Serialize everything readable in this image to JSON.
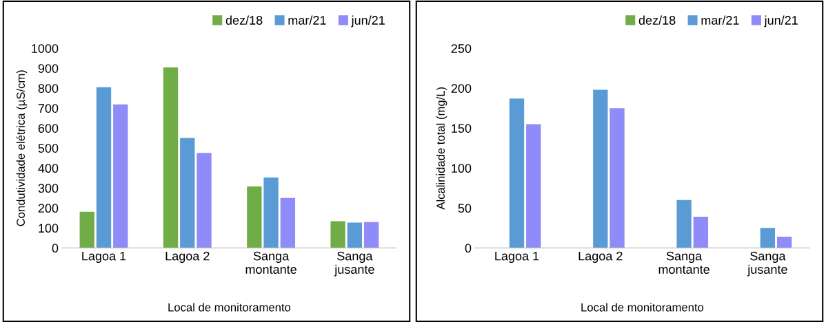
{
  "chart_data": [
    {
      "type": "bar",
      "xlabel": "Local de monitoramento",
      "ylabel": "Condutividade elétrica (µS/cm)",
      "categories": [
        "Lagoa 1",
        "Lagoa 2",
        "Sanga\nmontante",
        "Sanga\njusante"
      ],
      "series": [
        {
          "name": "dez/18",
          "color": "#70ad47",
          "values": [
            181,
            904,
            308,
            134
          ]
        },
        {
          "name": "mar/21",
          "color": "#5b9bd5",
          "values": [
            805,
            551,
            353,
            127
          ]
        },
        {
          "name": "jun/21",
          "color": "#8f8cf9",
          "values": [
            719,
            476,
            250,
            130
          ]
        }
      ],
      "ylim": [
        0,
        1000
      ],
      "yticks": [
        0,
        100,
        200,
        300,
        400,
        500,
        600,
        700,
        800,
        900,
        1000
      ],
      "grid": false,
      "legend": "top right"
    },
    {
      "type": "bar",
      "xlabel": "Local de monitoramento",
      "ylabel": "Alcalinidade total (mg/L)",
      "categories": [
        "Lagoa 1",
        "Lagoa 2",
        "Sanga\nmontante",
        "Sanga\njusante"
      ],
      "series": [
        {
          "name": "dez/18",
          "color": "#70ad47",
          "values": [
            null,
            null,
            null,
            null
          ]
        },
        {
          "name": "mar/21",
          "color": "#5b9bd5",
          "values": [
            187,
            198,
            60,
            25
          ]
        },
        {
          "name": "jun/21",
          "color": "#8f8cf9",
          "values": [
            155,
            175,
            39,
            14
          ]
        }
      ],
      "ylim": [
        0,
        250
      ],
      "yticks": [
        0,
        50,
        100,
        150,
        200,
        250
      ],
      "grid": false,
      "legend": "top right"
    }
  ]
}
